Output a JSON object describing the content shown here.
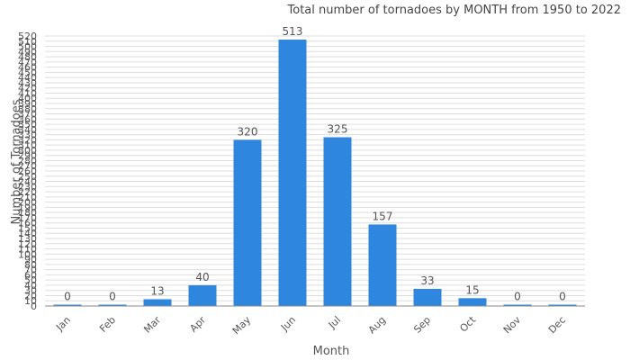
{
  "chart_data": {
    "type": "bar",
    "title": "Total number of tornadoes by MONTH from 1950 to 2022",
    "xlabel": "Month",
    "ylabel": "Number of Tornadoes",
    "categories": [
      "Jan",
      "Feb",
      "Mar",
      "Apr",
      "May",
      "Jun",
      "Jul",
      "Aug",
      "Sep",
      "Oct",
      "Nov",
      "Dec"
    ],
    "values": [
      0,
      0,
      13,
      40,
      320,
      513,
      325,
      157,
      33,
      15,
      0,
      0
    ],
    "data_labels": [
      "0",
      "0",
      "13",
      "40",
      "320",
      "513",
      "325",
      "157",
      "33",
      "15",
      "0",
      "0"
    ],
    "ylim": [
      0,
      520
    ],
    "ytick_step": 10,
    "yticks": [
      "0",
      "10",
      "20",
      "30",
      "40",
      "50",
      "60",
      "70",
      "80",
      "90",
      "100",
      "110",
      "120",
      "130",
      "140",
      "150",
      "160",
      "170",
      "180",
      "190",
      "200",
      "210",
      "220",
      "230",
      "240",
      "250",
      "260",
      "270",
      "280",
      "290",
      "300",
      "310",
      "320",
      "330",
      "340",
      "350",
      "360",
      "370",
      "380",
      "390",
      "400",
      "410",
      "420",
      "430",
      "440",
      "450",
      "460",
      "470",
      "480",
      "490",
      "500",
      "510",
      "520"
    ],
    "grid": true,
    "bar_color": "#2e86de",
    "grid_color": "#dddddd"
  }
}
